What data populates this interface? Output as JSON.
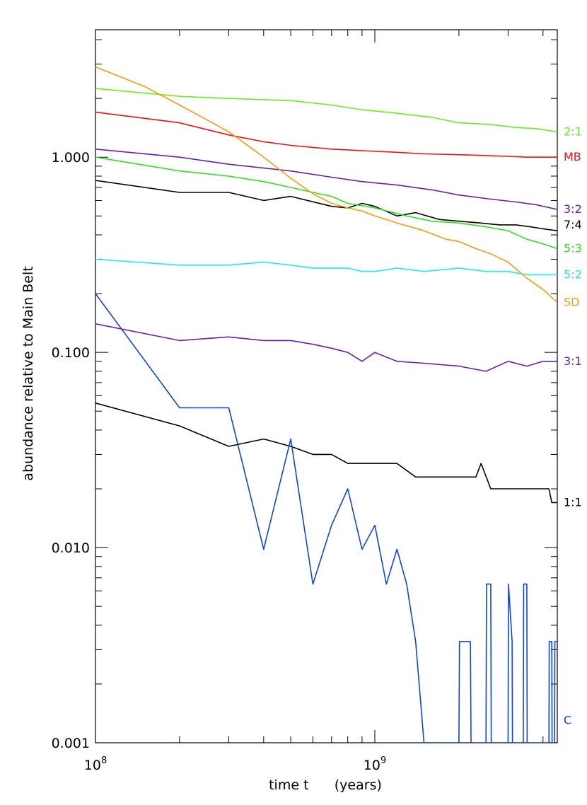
{
  "chart_data": {
    "type": "line",
    "xlabel": "time t      (years)",
    "ylabel": "abundance relative to Main Belt",
    "x_scale": "log",
    "y_scale": "log",
    "xlim": [
      100000000,
      4500000000
    ],
    "ylim": [
      0.001,
      4.5
    ],
    "x_ticks": [
      {
        "value": 100000000,
        "base": "10",
        "exp": "8"
      },
      {
        "value": 1000000000,
        "base": "10",
        "exp": "9"
      }
    ],
    "y_ticks": [
      {
        "value": 0.001,
        "label": "0.001"
      },
      {
        "value": 0.01,
        "label": "0.010"
      },
      {
        "value": 0.1,
        "label": "0.100"
      },
      {
        "value": 1,
        "label": "1.000"
      }
    ],
    "grid": false,
    "series": [
      {
        "name": "2:1",
        "color": "#66ee22",
        "x": [
          100000000,
          200000000,
          300000000,
          500000000,
          700000000,
          900000000,
          1200000000,
          1600000000,
          2000000000,
          2600000000,
          3200000000,
          3800000000,
          4500000000
        ],
        "y": [
          2.25,
          2.05,
          2.0,
          1.95,
          1.85,
          1.75,
          1.68,
          1.6,
          1.5,
          1.47,
          1.42,
          1.4,
          1.35
        ]
      },
      {
        "name": "MB",
        "color": "#ee1111",
        "x": [
          100000000,
          200000000,
          300000000,
          400000000,
          500000000,
          700000000,
          900000000,
          1200000000,
          1500000000,
          2000000000,
          2500000000,
          3000000000,
          3500000000,
          4000000000,
          4500000000
        ],
        "y": [
          1.7,
          1.5,
          1.3,
          1.2,
          1.15,
          1.1,
          1.08,
          1.06,
          1.04,
          1.03,
          1.02,
          1.01,
          1.0,
          1.0,
          1.0
        ]
      },
      {
        "name": "3:2",
        "color": "#6a1fa8",
        "x": [
          100000000,
          200000000,
          300000000,
          500000000,
          700000000,
          900000000,
          1200000000,
          1600000000,
          2000000000,
          2600000000,
          3200000000,
          3800000000,
          4500000000
        ],
        "y": [
          1.1,
          1.0,
          0.92,
          0.85,
          0.79,
          0.75,
          0.72,
          0.68,
          0.64,
          0.61,
          0.59,
          0.57,
          0.54
        ]
      },
      {
        "name": "7:4",
        "color": "#000000",
        "x": [
          100000000,
          200000000,
          300000000,
          400000000,
          500000000,
          700000000,
          800000000,
          900000000,
          1000000000,
          1200000000,
          1400000000,
          1700000000,
          2000000000,
          2400000000,
          2800000000,
          3200000000,
          3600000000,
          4000000000,
          4500000000
        ],
        "y": [
          0.76,
          0.66,
          0.66,
          0.6,
          0.63,
          0.56,
          0.55,
          0.58,
          0.56,
          0.5,
          0.52,
          0.48,
          0.47,
          0.46,
          0.45,
          0.45,
          0.44,
          0.43,
          0.42
        ]
      },
      {
        "name": "5:3",
        "color": "#33dd22",
        "x": [
          100000000,
          200000000,
          300000000,
          400000000,
          500000000,
          600000000,
          700000000,
          800000000,
          1000000000,
          1300000000,
          1600000000,
          2000000000,
          2500000000,
          3000000000,
          3500000000,
          4000000000,
          4500000000
        ],
        "y": [
          1.0,
          0.85,
          0.8,
          0.75,
          0.7,
          0.66,
          0.63,
          0.58,
          0.55,
          0.5,
          0.47,
          0.46,
          0.44,
          0.42,
          0.38,
          0.36,
          0.34
        ]
      },
      {
        "name": "5:2",
        "color": "#22e8ee",
        "x": [
          100000000,
          200000000,
          300000000,
          400000000,
          500000000,
          600000000,
          700000000,
          800000000,
          900000000,
          1000000000,
          1200000000,
          1500000000,
          2000000000,
          2500000000,
          3000000000,
          3500000000,
          4000000000,
          4500000000
        ],
        "y": [
          0.3,
          0.28,
          0.28,
          0.29,
          0.28,
          0.27,
          0.27,
          0.27,
          0.26,
          0.26,
          0.27,
          0.26,
          0.27,
          0.26,
          0.26,
          0.25,
          0.25,
          0.25
        ]
      },
      {
        "name": "SD",
        "color": "#ff9911",
        "x": [
          100000000,
          150000000,
          200000000,
          300000000,
          400000000,
          500000000,
          600000000,
          700000000,
          800000000,
          900000000,
          1000000000,
          1200000000,
          1500000000,
          1800000000,
          2000000000,
          2300000000,
          2600000000,
          3000000000,
          3500000000,
          4000000000,
          4500000000
        ],
        "y": [
          2.9,
          2.3,
          1.85,
          1.35,
          1.0,
          0.78,
          0.65,
          0.58,
          0.55,
          0.53,
          0.5,
          0.46,
          0.42,
          0.38,
          0.37,
          0.34,
          0.32,
          0.29,
          0.24,
          0.21,
          0.18
        ]
      },
      {
        "name": "3:1",
        "color": "#6a1fa8",
        "x": [
          100000000,
          200000000,
          300000000,
          400000000,
          500000000,
          600000000,
          700000000,
          800000000,
          900000000,
          1000000000,
          1200000000,
          1500000000,
          2000000000,
          2500000000,
          3000000000,
          3500000000,
          4000000000,
          4500000000
        ],
        "y": [
          0.14,
          0.115,
          0.12,
          0.115,
          0.115,
          0.11,
          0.105,
          0.1,
          0.09,
          0.1,
          0.09,
          0.088,
          0.085,
          0.08,
          0.09,
          0.085,
          0.09,
          0.09
        ]
      },
      {
        "name": "1:1",
        "color": "#000000",
        "x": [
          100000000,
          200000000,
          300000000,
          400000000,
          500000000,
          600000000,
          700000000,
          800000000,
          1000000000,
          1200000000,
          1400000000,
          2000000000,
          2300000000,
          2400000000,
          2600000000,
          3000000000,
          4200000000,
          4300000000,
          4500000000
        ],
        "y": [
          0.055,
          0.042,
          0.033,
          0.036,
          0.033,
          0.03,
          0.03,
          0.027,
          0.027,
          0.027,
          0.023,
          0.023,
          0.023,
          0.027,
          0.02,
          0.02,
          0.02,
          0.017,
          0.017
        ]
      },
      {
        "name": "C",
        "color": "#1144dd",
        "x": [
          100000000,
          200000000,
          300000000,
          400000000,
          500000000,
          600000000,
          700000000,
          800000000,
          900000000,
          1000000000,
          1100000000,
          1200000000,
          1300000000,
          1400000000,
          1500000000,
          1510000000,
          2000000000,
          2010000000,
          2200000000,
          2210000000,
          2500000000,
          2510000000,
          2600000000,
          2610000000,
          3000000000,
          3010000000,
          3100000000,
          3110000000,
          3400000000,
          3410000000,
          3500000000,
          3510000000,
          4200000000,
          4210000000,
          4300000000,
          4310000000,
          4400000000,
          4410000000,
          4500000000
        ],
        "y": [
          0.2,
          0.052,
          0.052,
          0.0098,
          0.036,
          0.0065,
          0.013,
          0.02,
          0.0098,
          0.013,
          0.0065,
          0.0098,
          0.0065,
          0.0033,
          0.001,
          0.001,
          0.001,
          0.0033,
          0.0033,
          0.001,
          0.001,
          0.0065,
          0.0065,
          0.001,
          0.001,
          0.0065,
          0.0033,
          0.001,
          0.001,
          0.0065,
          0.0065,
          0.001,
          0.001,
          0.0033,
          0.0033,
          0.001,
          0.001,
          0.0033,
          0.0033
        ]
      }
    ],
    "label_positions_order": [
      "2:1",
      "MB",
      "3:2",
      "7:4",
      "5:3",
      "5:2",
      "SD",
      "3:1",
      "1:1",
      "C"
    ]
  }
}
